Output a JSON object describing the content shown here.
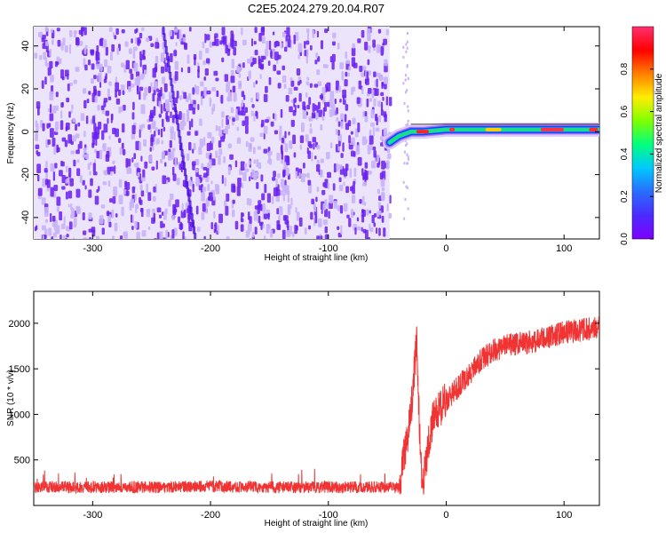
{
  "title": "C2E5.2024.279.20.04.R07",
  "colors": {
    "spec_bg_base": "#ffffff",
    "spec_dot": "#6a1ff0",
    "spec_dot_light": "#c9b2f7",
    "snr_line": "#f03434",
    "colorbar_stops": [
      "#7f00ff",
      "#4b2bff",
      "#2a6cff",
      "#00c8ff",
      "#00ff7f",
      "#7fff00",
      "#ffee00",
      "#ff7f00",
      "#ff0000",
      "#ff3070"
    ]
  },
  "chart_data": [
    {
      "type": "heatmap",
      "xlabel": "Height of straight line (km)",
      "ylabel": "Frequency (Hz)",
      "xlim": [
        -350,
        130
      ],
      "ylim": [
        -50,
        49
      ],
      "xticks": [
        -300,
        -200,
        -100,
        0,
        100
      ],
      "yticks": [
        -40,
        -20,
        0,
        20,
        40
      ],
      "colorbar": {
        "label": "Normalized spectral amplitude",
        "range": [
          0,
          1
        ],
        "ticks": [
          0.0,
          0.2,
          0.4,
          0.6,
          0.8
        ]
      },
      "features": {
        "noise_region_x": [
          -350,
          -48
        ],
        "signal_trace": [
          {
            "x": -48,
            "y": -5
          },
          {
            "x": -40,
            "y": -2
          },
          {
            "x": -30,
            "y": 0
          },
          {
            "x": -20,
            "y": 0
          },
          {
            "x": 0,
            "y": 1
          },
          {
            "x": 50,
            "y": 1
          },
          {
            "x": 100,
            "y": 1
          },
          {
            "x": 130,
            "y": 1
          }
        ]
      }
    },
    {
      "type": "line",
      "xlabel": "Height of straight line (km)",
      "ylabel": "SNR (10 * v/v)",
      "xlim": [
        -350,
        130
      ],
      "ylim": [
        0,
        2350
      ],
      "xticks": [
        -300,
        -200,
        -100,
        0,
        100
      ],
      "yticks": [
        500,
        1000,
        1500,
        2000
      ],
      "series": [
        {
          "x": [
            -350,
            -300,
            -250,
            -200,
            -150,
            -100,
            -50,
            -40,
            -35,
            -30,
            -25,
            -22,
            -20,
            -15,
            -10,
            0,
            10,
            20,
            30,
            40,
            50,
            75,
            100,
            130
          ],
          "y": [
            200,
            200,
            200,
            210,
            200,
            200,
            200,
            200,
            600,
            1000,
            1800,
            600,
            200,
            700,
            1000,
            1150,
            1300,
            1450,
            1600,
            1700,
            1750,
            1800,
            1900,
            1950
          ]
        }
      ]
    }
  ]
}
